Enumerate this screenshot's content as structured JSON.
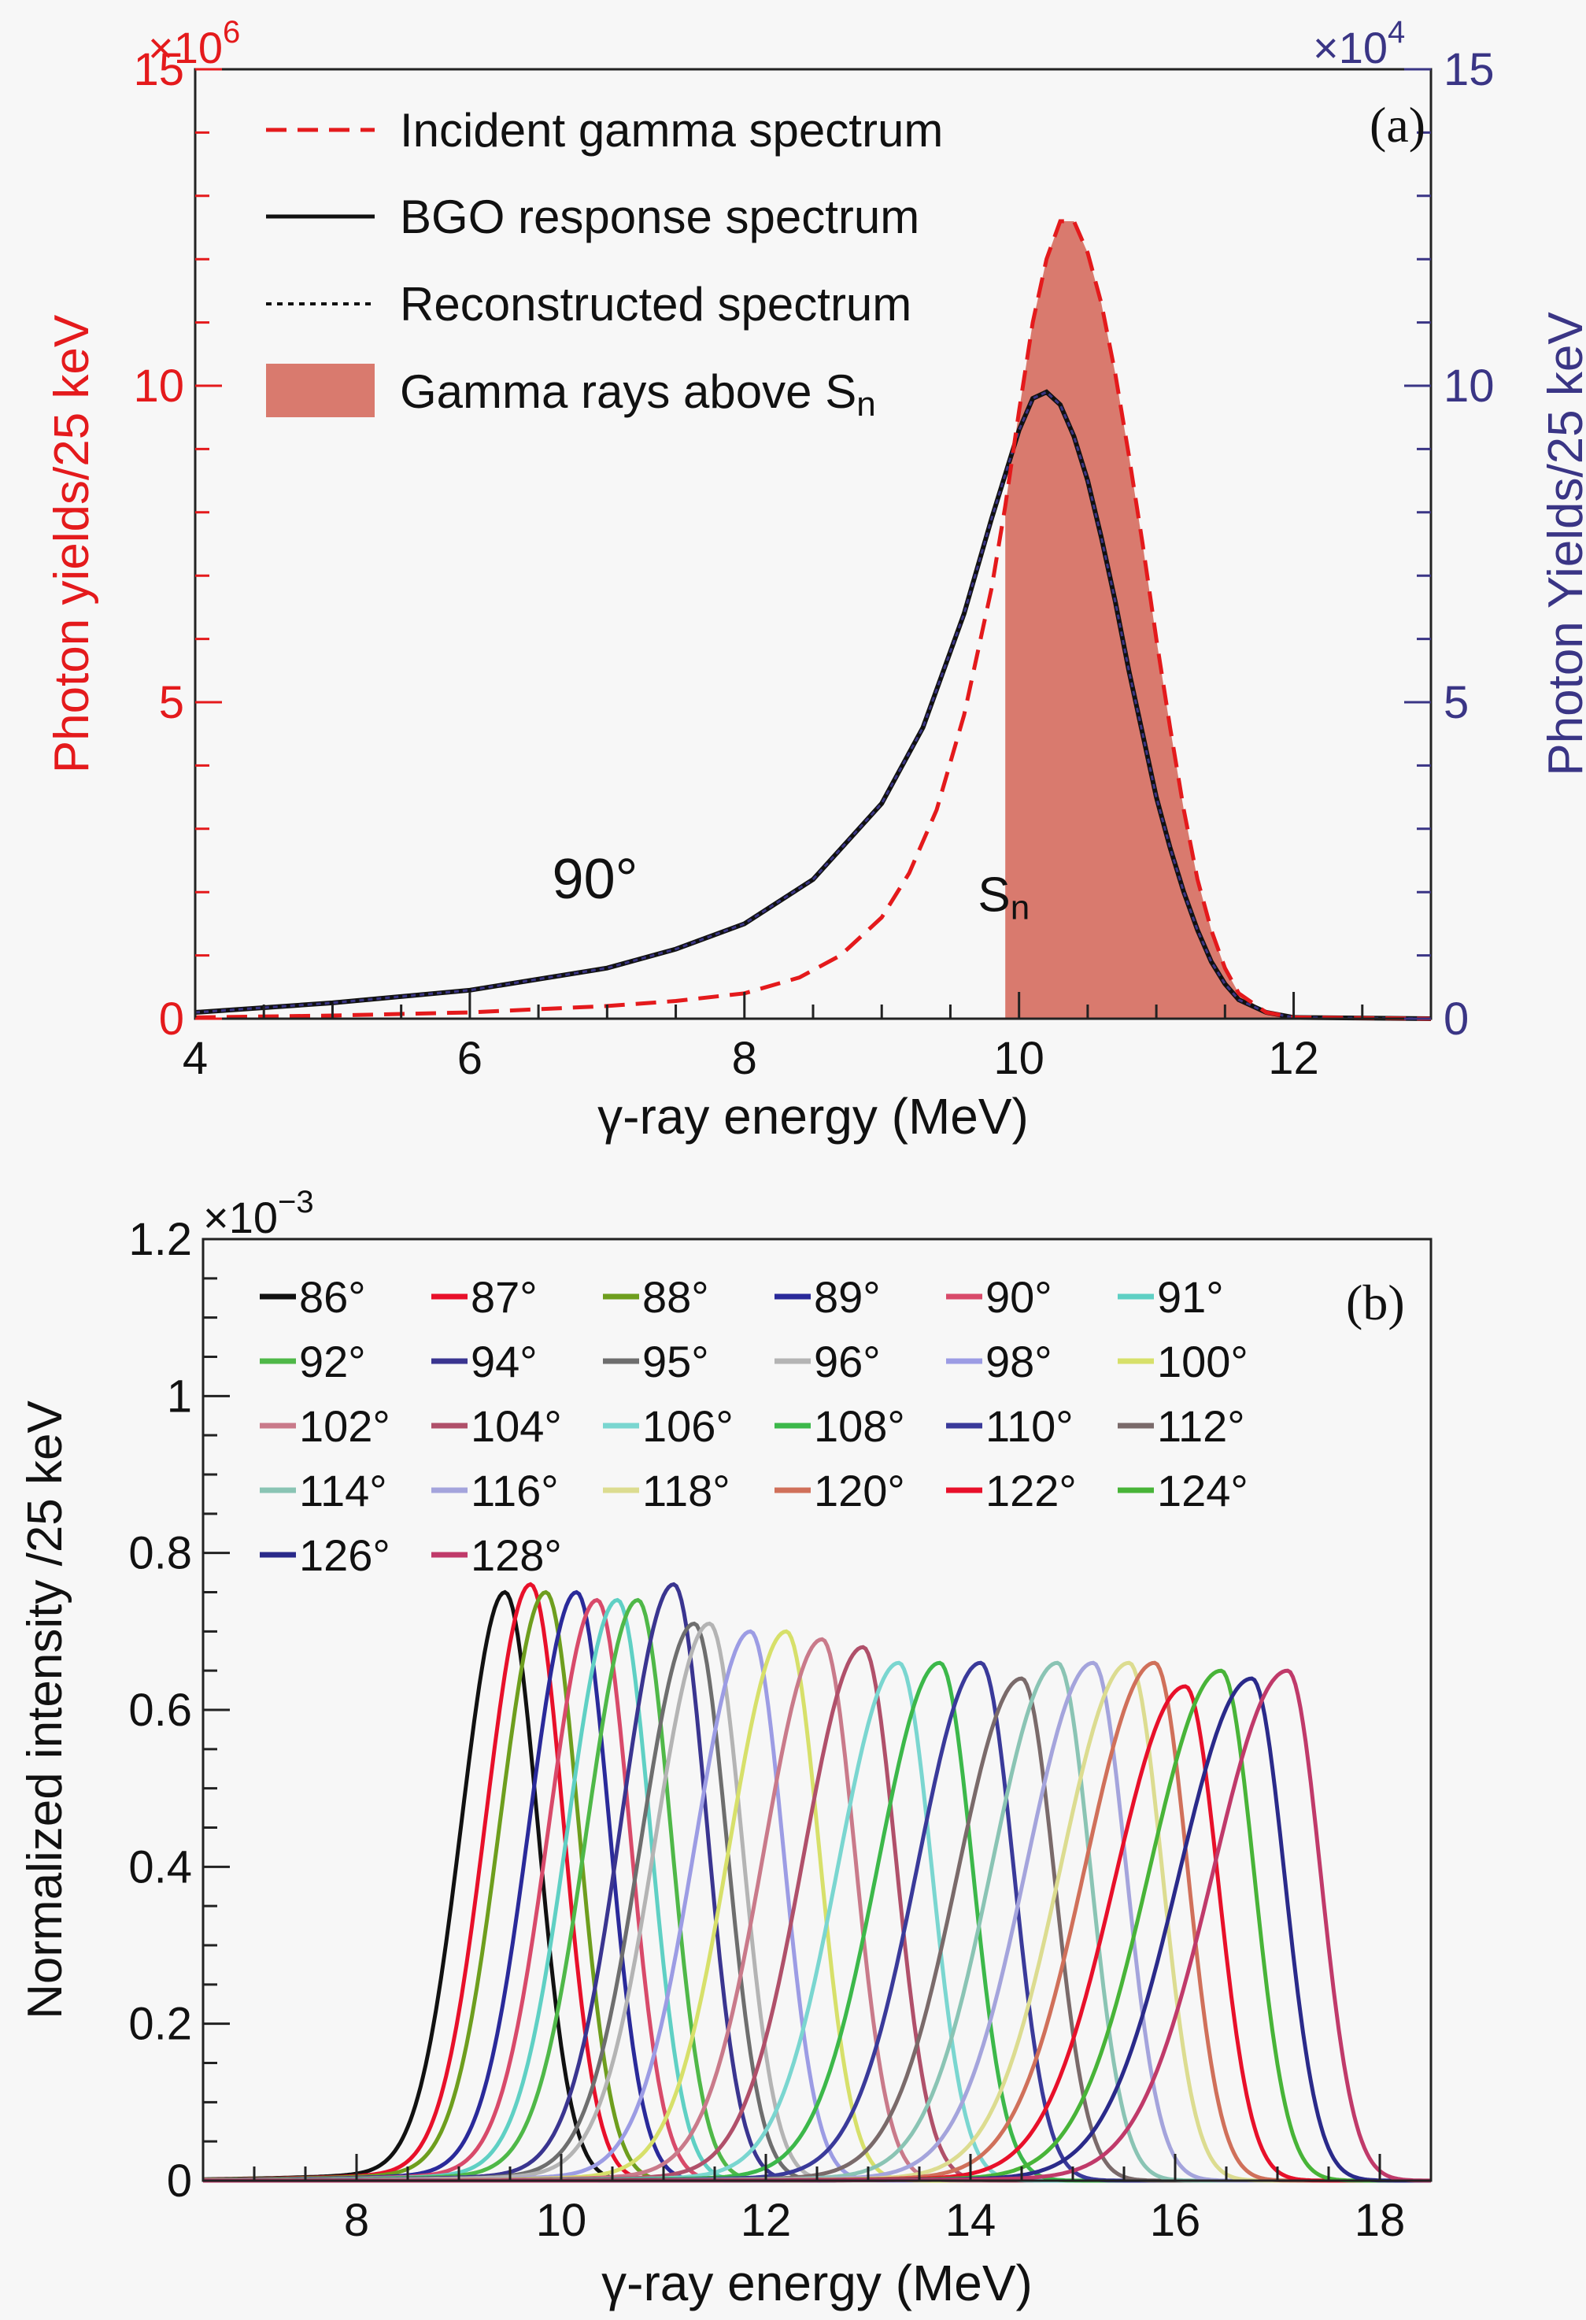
{
  "chart_data": [
    {
      "id": "a",
      "type": "line",
      "panel_label": "(a)",
      "xlabel": "γ-ray energy (MeV)",
      "ylabel_left": "Photon yields/25 keV",
      "ylabel_right": "Photon Yields/25 keV",
      "multiplier_left": "×10",
      "multiplier_left_exp": "6",
      "multiplier_right": "×10",
      "multiplier_right_exp": "4",
      "xlim": [
        4,
        13
      ],
      "ylim_left": [
        0,
        15
      ],
      "ylim_right": [
        0,
        15
      ],
      "xticks": [
        "4",
        "6",
        "8",
        "10",
        "12"
      ],
      "yticks_left": [
        "0",
        "5",
        "10",
        "15"
      ],
      "yticks_right": [
        "0",
        "5",
        "10",
        "15"
      ],
      "colors": {
        "left_axis": "#e41a1c",
        "right_axis": "#3a3585",
        "fill": "#d97a6e",
        "incident": "#e41a1c",
        "response": "#111111",
        "reconstructed": "#3a3585"
      },
      "annotations": [
        {
          "text": "90°",
          "x": 6.6,
          "y": 1.9
        },
        {
          "text": "S",
          "sub": "n",
          "x": 9.7,
          "y": 1.7
        }
      ],
      "sn_threshold": 9.9,
      "legend": [
        {
          "label": "Incident gamma spectrum",
          "style": "dashed"
        },
        {
          "label": "BGO response spectrum",
          "style": "solid"
        },
        {
          "label": "Reconstructed spectrum",
          "style": "dotted"
        },
        {
          "label": "Gamma rays above S",
          "label_sub": "n",
          "style": "fill"
        }
      ],
      "series": [
        {
          "name": "Incident gamma spectrum",
          "axis": "left",
          "x": [
            4.0,
            5.0,
            6.0,
            7.0,
            7.5,
            8.0,
            8.4,
            8.7,
            9.0,
            9.2,
            9.4,
            9.6,
            9.8,
            9.9,
            10.0,
            10.1,
            10.2,
            10.3,
            10.4,
            10.5,
            10.6,
            10.7,
            10.8,
            10.9,
            11.0,
            11.1,
            11.2,
            11.3,
            11.4,
            11.5,
            11.6,
            11.8,
            12.0,
            13.0
          ],
          "y": [
            0.02,
            0.05,
            0.1,
            0.2,
            0.28,
            0.4,
            0.65,
            1.0,
            1.6,
            2.3,
            3.3,
            4.8,
            6.8,
            8.1,
            9.6,
            11.0,
            12.0,
            12.6,
            12.6,
            12.1,
            11.3,
            10.2,
            8.9,
            7.5,
            6.0,
            4.6,
            3.3,
            2.2,
            1.4,
            0.8,
            0.4,
            0.1,
            0.02,
            0.0
          ]
        },
        {
          "name": "BGO response spectrum",
          "axis": "right",
          "x": [
            4.0,
            5.0,
            6.0,
            7.0,
            7.5,
            8.0,
            8.5,
            9.0,
            9.3,
            9.6,
            9.8,
            10.0,
            10.1,
            10.2,
            10.3,
            10.4,
            10.5,
            10.6,
            10.7,
            10.8,
            10.9,
            11.0,
            11.1,
            11.2,
            11.3,
            11.4,
            11.5,
            11.6,
            11.8,
            12.0,
            13.0
          ],
          "y": [
            0.1,
            0.25,
            0.45,
            0.8,
            1.1,
            1.5,
            2.2,
            3.4,
            4.6,
            6.4,
            7.9,
            9.3,
            9.8,
            9.9,
            9.7,
            9.2,
            8.5,
            7.6,
            6.6,
            5.5,
            4.5,
            3.5,
            2.7,
            2.0,
            1.4,
            0.9,
            0.55,
            0.3,
            0.1,
            0.02,
            0.0
          ]
        },
        {
          "name": "Reconstructed spectrum",
          "axis": "right",
          "x": [
            4.0,
            5.0,
            6.0,
            7.0,
            7.5,
            8.0,
            8.5,
            9.0,
            9.3,
            9.6,
            9.8,
            10.0,
            10.1,
            10.2,
            10.3,
            10.4,
            10.5,
            10.6,
            10.7,
            10.8,
            10.9,
            11.0,
            11.1,
            11.2,
            11.3,
            11.4,
            11.5,
            11.6,
            11.8,
            12.0,
            13.0
          ],
          "y": [
            0.1,
            0.25,
            0.45,
            0.8,
            1.1,
            1.5,
            2.2,
            3.4,
            4.6,
            6.4,
            7.9,
            9.3,
            9.8,
            9.9,
            9.7,
            9.2,
            8.5,
            7.6,
            6.6,
            5.5,
            4.5,
            3.5,
            2.7,
            2.0,
            1.4,
            0.9,
            0.55,
            0.3,
            0.1,
            0.02,
            0.0
          ]
        }
      ]
    },
    {
      "id": "b",
      "type": "line",
      "panel_label": "(b)",
      "xlabel": "γ-ray energy (MeV)",
      "ylabel": "Normalized intensity /25 keV",
      "multiplier": "×10",
      "multiplier_exp": "−3",
      "xlim": [
        6.5,
        18.5
      ],
      "ylim": [
        0,
        1.2
      ],
      "xticks": [
        "8",
        "10",
        "12",
        "14",
        "16",
        "18"
      ],
      "yticks": [
        "0",
        "0.2",
        "0.4",
        "0.6",
        "0.8",
        "1",
        "1.2"
      ],
      "series": [
        {
          "name": "86°",
          "color": "#111111",
          "peak_x": 9.45,
          "peak_y": 0.75
        },
        {
          "name": "87°",
          "color": "#e8102a",
          "peak_x": 9.7,
          "peak_y": 0.76
        },
        {
          "name": "88°",
          "color": "#6e9e1e",
          "peak_x": 9.85,
          "peak_y": 0.75
        },
        {
          "name": "89°",
          "color": "#2a2a9a",
          "peak_x": 10.15,
          "peak_y": 0.75
        },
        {
          "name": "90°",
          "color": "#d84a6a",
          "peak_x": 10.35,
          "peak_y": 0.74
        },
        {
          "name": "91°",
          "color": "#5fd0c4",
          "peak_x": 10.55,
          "peak_y": 0.74
        },
        {
          "name": "92°",
          "color": "#4fb848",
          "peak_x": 10.75,
          "peak_y": 0.74
        },
        {
          "name": "94°",
          "color": "#3a3590",
          "peak_x": 11.1,
          "peak_y": 0.76
        },
        {
          "name": "95°",
          "color": "#6e6e6e",
          "peak_x": 11.3,
          "peak_y": 0.71
        },
        {
          "name": "96°",
          "color": "#b4b4b4",
          "peak_x": 11.45,
          "peak_y": 0.71
        },
        {
          "name": "98°",
          "color": "#9c9ce4",
          "peak_x": 11.85,
          "peak_y": 0.7
        },
        {
          "name": "100°",
          "color": "#d7e06a",
          "peak_x": 12.2,
          "peak_y": 0.7
        },
        {
          "name": "102°",
          "color": "#c97a8a",
          "peak_x": 12.55,
          "peak_y": 0.69
        },
        {
          "name": "104°",
          "color": "#b0506a",
          "peak_x": 12.95,
          "peak_y": 0.68
        },
        {
          "name": "106°",
          "color": "#7ad6d0",
          "peak_x": 13.3,
          "peak_y": 0.66
        },
        {
          "name": "108°",
          "color": "#3cb84a",
          "peak_x": 13.7,
          "peak_y": 0.66
        },
        {
          "name": "110°",
          "color": "#3a3a9a",
          "peak_x": 14.1,
          "peak_y": 0.66
        },
        {
          "name": "112°",
          "color": "#7a6a6a",
          "peak_x": 14.5,
          "peak_y": 0.64
        },
        {
          "name": "114°",
          "color": "#8ac4b4",
          "peak_x": 14.85,
          "peak_y": 0.66
        },
        {
          "name": "116°",
          "color": "#a4a4dc",
          "peak_x": 15.2,
          "peak_y": 0.66
        },
        {
          "name": "118°",
          "color": "#dcdc90",
          "peak_x": 15.55,
          "peak_y": 0.66
        },
        {
          "name": "120°",
          "color": "#d0705a",
          "peak_x": 15.8,
          "peak_y": 0.66
        },
        {
          "name": "122°",
          "color": "#e8102a",
          "peak_x": 16.1,
          "peak_y": 0.63
        },
        {
          "name": "124°",
          "color": "#48b438",
          "peak_x": 16.45,
          "peak_y": 0.65
        },
        {
          "name": "126°",
          "color": "#2a2a8a",
          "peak_x": 16.75,
          "peak_y": 0.64
        },
        {
          "name": "128°",
          "color": "#c03a6a",
          "peak_x": 17.1,
          "peak_y": 0.65
        }
      ]
    }
  ]
}
